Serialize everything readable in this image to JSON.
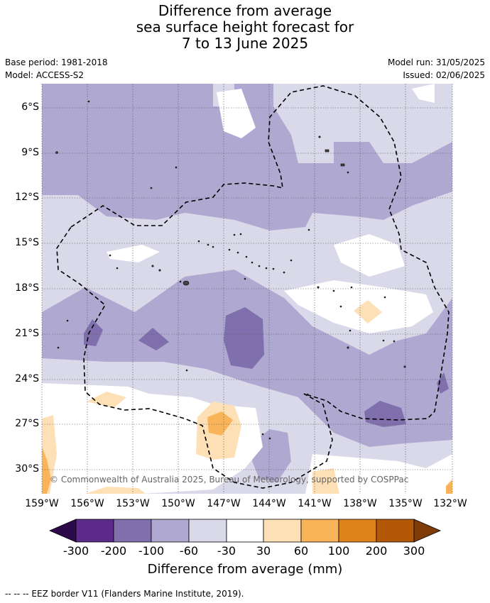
{
  "title": {
    "line1": "Difference from average",
    "line2": "sea surface height forecast for",
    "line3": "7 to 13 June 2025"
  },
  "meta": {
    "base_period": "Base period: 1981-2018",
    "model": "Model: ACCESS-S2",
    "model_run": "Model run: 31/05/2025",
    "issued": "Issued: 02/06/2025"
  },
  "axes": {
    "lat_labels": [
      "6°S",
      "9°S",
      "12°S",
      "15°S",
      "18°S",
      "21°S",
      "24°S",
      "27°S",
      "30°S"
    ],
    "lon_labels": [
      "159°W",
      "156°W",
      "153°W",
      "150°W",
      "147°W",
      "144°W",
      "141°W",
      "138°W",
      "135°W",
      "132°W"
    ]
  },
  "copyright": "© Commonwealth of Australia 2025, Bureau of Meteorology, supported by COSPPac",
  "colorbar": {
    "ticks": [
      "-300",
      "-200",
      "-100",
      "-60",
      "-30",
      "30",
      "60",
      "100",
      "200",
      "300"
    ],
    "title": "Difference from average (mm)",
    "colors": {
      "under": "#2d0a4b",
      "bins": [
        "#5b2a8a",
        "#7f6fad",
        "#afa8d0",
        "#d9d9ea",
        "#ffffff",
        "#fee0b6",
        "#f9b45a",
        "#e0821a",
        "#b35806"
      ],
      "over": "#7f3b08"
    }
  },
  "footnote": "--  --  -- EEZ border V11 (Flanders Marine Institute, 2019)."
}
